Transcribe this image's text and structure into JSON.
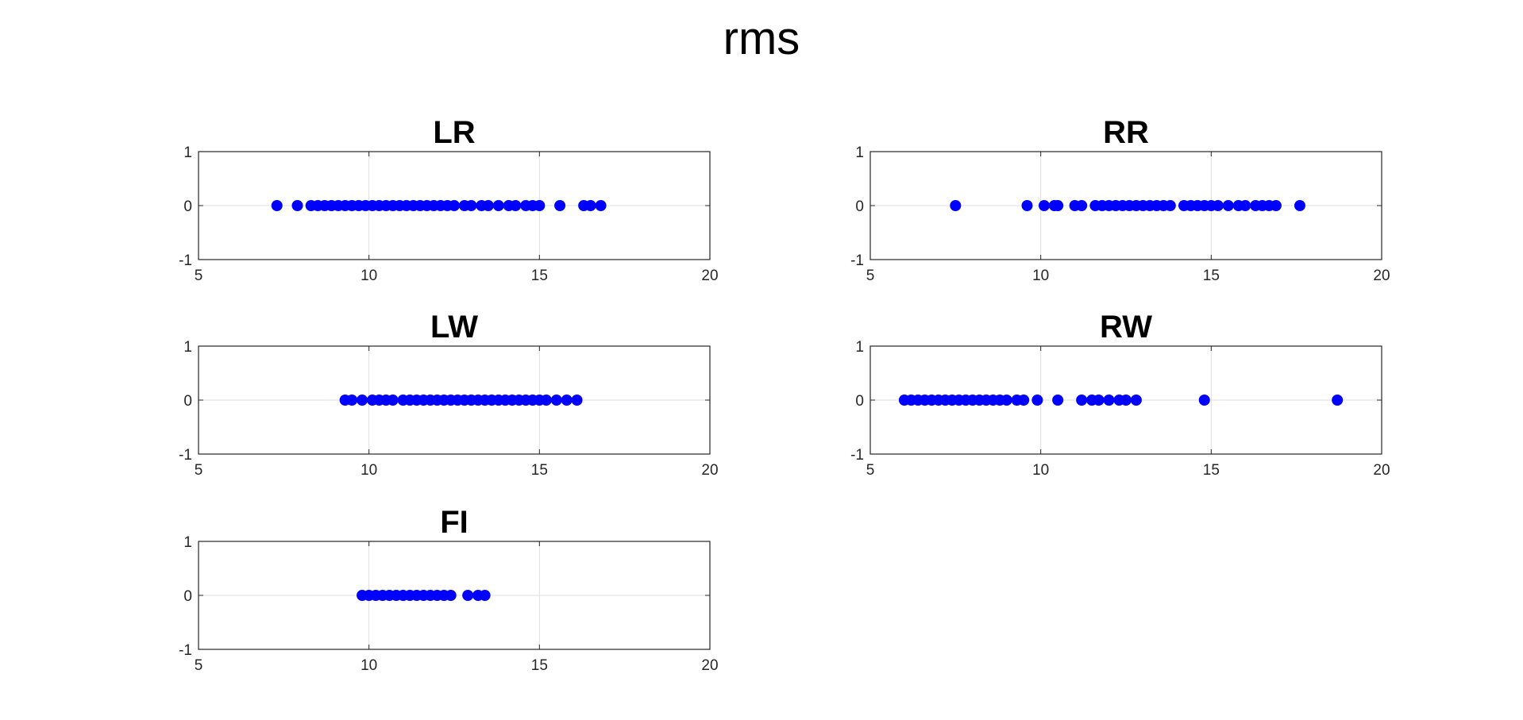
{
  "figure_title": "rms",
  "chart_data": [
    {
      "type": "scatter",
      "title": "LR",
      "xlim": [
        5,
        20
      ],
      "ylim": [
        -1,
        1
      ],
      "xticks": [
        5,
        10,
        15,
        20
      ],
      "yticks": [
        -1,
        0,
        1
      ],
      "xticklabels": [
        "5",
        "10",
        "15",
        "20"
      ],
      "yticklabels": [
        "-1",
        "0",
        "1"
      ],
      "grid": true,
      "marker_color": "#0000ff",
      "x": [
        7.3,
        7.9,
        8.3,
        8.5,
        8.7,
        8.9,
        9.1,
        9.3,
        9.5,
        9.7,
        9.9,
        10.1,
        10.3,
        10.5,
        10.7,
        10.9,
        11.1,
        11.3,
        11.5,
        11.7,
        11.9,
        12.1,
        12.3,
        12.5,
        12.8,
        13.0,
        13.3,
        13.5,
        13.8,
        14.1,
        14.3,
        14.6,
        14.8,
        15.0,
        15.6,
        16.3,
        16.5,
        16.8
      ],
      "y": [
        0,
        0,
        0,
        0,
        0,
        0,
        0,
        0,
        0,
        0,
        0,
        0,
        0,
        0,
        0,
        0,
        0,
        0,
        0,
        0,
        0,
        0,
        0,
        0,
        0,
        0,
        0,
        0,
        0,
        0,
        0,
        0,
        0,
        0,
        0,
        0,
        0,
        0
      ]
    },
    {
      "type": "scatter",
      "title": "RR",
      "xlim": [
        5,
        20
      ],
      "ylim": [
        -1,
        1
      ],
      "xticks": [
        5,
        10,
        15,
        20
      ],
      "yticks": [
        -1,
        0,
        1
      ],
      "xticklabels": [
        "5",
        "10",
        "15",
        "20"
      ],
      "yticklabels": [
        "-1",
        "0",
        "1"
      ],
      "grid": true,
      "marker_color": "#0000ff",
      "x": [
        7.5,
        9.6,
        10.1,
        10.4,
        10.5,
        11.0,
        11.2,
        11.6,
        11.8,
        12.0,
        12.2,
        12.4,
        12.6,
        12.8,
        13.0,
        13.2,
        13.4,
        13.6,
        13.8,
        14.2,
        14.4,
        14.6,
        14.8,
        15.0,
        15.2,
        15.5,
        15.8,
        16.0,
        16.3,
        16.5,
        16.7,
        16.9,
        17.6
      ],
      "y": [
        0,
        0,
        0,
        0,
        0,
        0,
        0,
        0,
        0,
        0,
        0,
        0,
        0,
        0,
        0,
        0,
        0,
        0,
        0,
        0,
        0,
        0,
        0,
        0,
        0,
        0,
        0,
        0,
        0,
        0,
        0,
        0,
        0
      ]
    },
    {
      "type": "scatter",
      "title": "LW",
      "xlim": [
        5,
        20
      ],
      "ylim": [
        -1,
        1
      ],
      "xticks": [
        5,
        10,
        15,
        20
      ],
      "yticks": [
        -1,
        0,
        1
      ],
      "xticklabels": [
        "5",
        "10",
        "15",
        "20"
      ],
      "yticklabels": [
        "-1",
        "0",
        "1"
      ],
      "grid": true,
      "marker_color": "#0000ff",
      "x": [
        9.3,
        9.5,
        9.8,
        10.1,
        10.3,
        10.5,
        10.7,
        11.0,
        11.2,
        11.4,
        11.6,
        11.8,
        12.0,
        12.2,
        12.4,
        12.6,
        12.8,
        13.0,
        13.2,
        13.4,
        13.6,
        13.8,
        14.0,
        14.2,
        14.4,
        14.6,
        14.8,
        15.0,
        15.2,
        15.5,
        15.8,
        16.1
      ],
      "y": [
        0,
        0,
        0,
        0,
        0,
        0,
        0,
        0,
        0,
        0,
        0,
        0,
        0,
        0,
        0,
        0,
        0,
        0,
        0,
        0,
        0,
        0,
        0,
        0,
        0,
        0,
        0,
        0,
        0,
        0,
        0,
        0
      ]
    },
    {
      "type": "scatter",
      "title": "RW",
      "xlim": [
        5,
        20
      ],
      "ylim": [
        -1,
        1
      ],
      "xticks": [
        5,
        10,
        15,
        20
      ],
      "yticks": [
        -1,
        0,
        1
      ],
      "xticklabels": [
        "5",
        "10",
        "15",
        "20"
      ],
      "yticklabels": [
        "-1",
        "0",
        "1"
      ],
      "grid": true,
      "marker_color": "#0000ff",
      "x": [
        6.0,
        6.2,
        6.4,
        6.6,
        6.8,
        7.0,
        7.2,
        7.4,
        7.6,
        7.8,
        8.0,
        8.2,
        8.4,
        8.6,
        8.8,
        9.0,
        9.3,
        9.5,
        9.9,
        10.5,
        11.2,
        11.5,
        11.7,
        12.0,
        12.3,
        12.5,
        12.8,
        14.8,
        18.7
      ],
      "y": [
        0,
        0,
        0,
        0,
        0,
        0,
        0,
        0,
        0,
        0,
        0,
        0,
        0,
        0,
        0,
        0,
        0,
        0,
        0,
        0,
        0,
        0,
        0,
        0,
        0,
        0,
        0,
        0,
        0
      ]
    },
    {
      "type": "scatter",
      "title": "FI",
      "xlim": [
        5,
        20
      ],
      "ylim": [
        -1,
        1
      ],
      "xticks": [
        5,
        10,
        15,
        20
      ],
      "yticks": [
        -1,
        0,
        1
      ],
      "xticklabels": [
        "5",
        "10",
        "15",
        "20"
      ],
      "yticklabels": [
        "-1",
        "0",
        "1"
      ],
      "grid": true,
      "marker_color": "#0000ff",
      "x": [
        9.8,
        10.0,
        10.2,
        10.4,
        10.6,
        10.8,
        11.0,
        11.2,
        11.4,
        11.6,
        11.8,
        12.0,
        12.2,
        12.4,
        12.9,
        13.2,
        13.4
      ],
      "y": [
        0,
        0,
        0,
        0,
        0,
        0,
        0,
        0,
        0,
        0,
        0,
        0,
        0,
        0,
        0,
        0,
        0
      ]
    }
  ]
}
